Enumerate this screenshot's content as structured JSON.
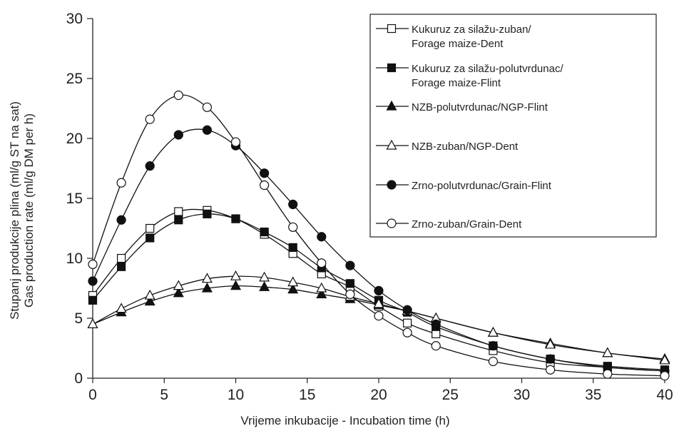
{
  "chart_data": {
    "type": "line",
    "xlabel": "Vrijeme inkubacije - Incubation time (h)",
    "ylabel_lines": [
      "Stupanj produkcije plina (ml/g ST na sat)",
      "Gas production rate (ml/g DM per h)"
    ],
    "xlim": [
      0,
      40
    ],
    "ylim": [
      0,
      30
    ],
    "xticks": [
      0,
      5,
      10,
      15,
      20,
      25,
      30,
      35,
      40
    ],
    "yticks": [
      0,
      5,
      10,
      15,
      20,
      25,
      30
    ],
    "grid": false,
    "legend_position": "top-right",
    "x": [
      0,
      2,
      4,
      6,
      8,
      10,
      12,
      14,
      16,
      18,
      20,
      22,
      24,
      28,
      32,
      36,
      40
    ],
    "series": [
      {
        "name": "Kukuruz za silažu-zuban/ Forage maize-Dent",
        "legend_lines": [
          "Kukuruz za silažu-zuban/",
          "Forage maize-Dent"
        ],
        "marker": "square-open",
        "values": [
          6.9,
          10.0,
          12.5,
          13.9,
          14.0,
          13.3,
          12.0,
          10.4,
          8.7,
          7.6,
          6.0,
          4.6,
          3.7,
          2.3,
          1.3,
          0.9,
          0.6
        ]
      },
      {
        "name": "Kukuruz za silažu-polutvrdunac/ Forage maize-Flint",
        "legend_lines": [
          "Kukuruz za silažu-polutvrdunac/",
          "Forage maize-Flint"
        ],
        "marker": "square-filled",
        "values": [
          6.5,
          9.3,
          11.7,
          13.2,
          13.7,
          13.3,
          12.2,
          10.9,
          9.2,
          7.9,
          6.5,
          5.5,
          4.3,
          2.7,
          1.6,
          1.0,
          0.7
        ]
      },
      {
        "name": "NZB-polutvrdunac/NGP-Flint",
        "legend_lines": [
          "NZB-polutvrdunac/NGP-Flint"
        ],
        "marker": "triangle-filled",
        "values": [
          4.5,
          5.5,
          6.4,
          7.1,
          7.5,
          7.7,
          7.6,
          7.4,
          7.0,
          6.6,
          6.1,
          5.6,
          5.0,
          3.8,
          2.9,
          2.1,
          1.6
        ]
      },
      {
        "name": "NZB-zuban/NGP-Dent",
        "legend_lines": [
          "NZB-zuban/NGP-Dent"
        ],
        "marker": "triangle-open",
        "values": [
          4.5,
          5.8,
          6.9,
          7.7,
          8.3,
          8.5,
          8.4,
          8.0,
          7.5,
          6.8,
          6.2,
          5.6,
          5.0,
          3.8,
          2.8,
          2.1,
          1.5
        ]
      },
      {
        "name": "Zrno-polutvrdunac/Grain-Flint",
        "legend_lines": [
          "Zrno-polutvrdunac/Grain-Flint"
        ],
        "marker": "circle-filled",
        "values": [
          8.1,
          13.2,
          17.7,
          20.3,
          20.7,
          19.4,
          17.1,
          14.5,
          11.8,
          9.4,
          7.3,
          5.7,
          4.5,
          2.7,
          1.6,
          0.9,
          0.6
        ]
      },
      {
        "name": "Zrno-zuban/Grain-Dent",
        "legend_lines": [
          "Zrno-zuban/Grain-Dent"
        ],
        "marker": "circle-open",
        "values": [
          9.5,
          16.3,
          21.6,
          23.6,
          22.6,
          19.7,
          16.1,
          12.6,
          9.6,
          7.0,
          5.2,
          3.8,
          2.7,
          1.4,
          0.7,
          0.35,
          0.2
        ]
      }
    ]
  }
}
